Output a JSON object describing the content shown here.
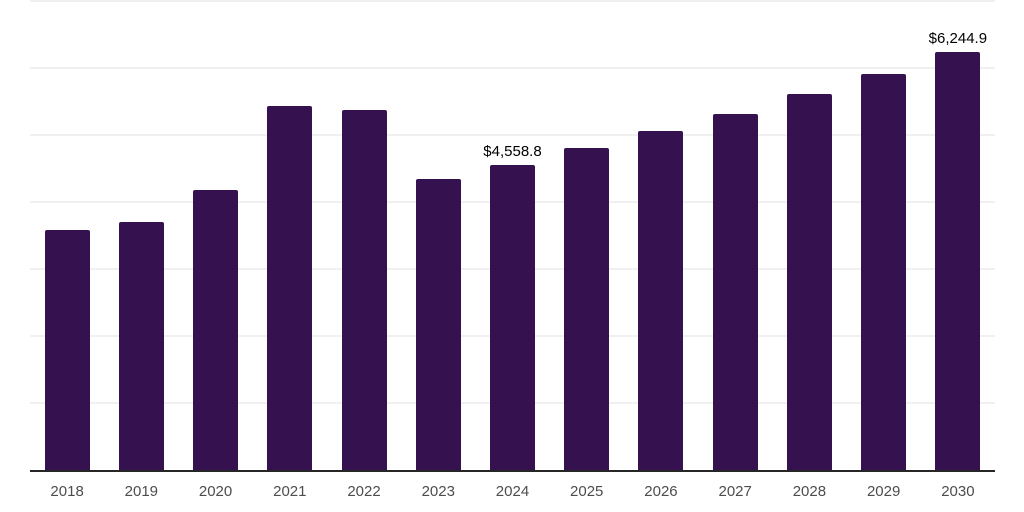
{
  "chart_data": {
    "type": "bar",
    "categories": [
      "2018",
      "2019",
      "2020",
      "2021",
      "2022",
      "2023",
      "2024",
      "2025",
      "2026",
      "2027",
      "2028",
      "2029",
      "2030"
    ],
    "values": [
      3575,
      3695,
      4180,
      5435,
      5375,
      4345,
      4558.8,
      4800,
      5055,
      5320,
      5610,
      5915,
      6244.9
    ],
    "data_labels": [
      {
        "index": 6,
        "text": "$4,558.8"
      },
      {
        "index": 12,
        "text": "$6,244.9"
      }
    ],
    "ylim": [
      0,
      7000
    ],
    "gridline_interval": 1000,
    "grid": true,
    "legend": false,
    "colors": {
      "bar": "#351150",
      "background": "#ffffff",
      "gridline": "#f0f0f0",
      "axis_line": "#262626",
      "tick_label": "#4d4d4d",
      "value_label": "#000000"
    }
  }
}
